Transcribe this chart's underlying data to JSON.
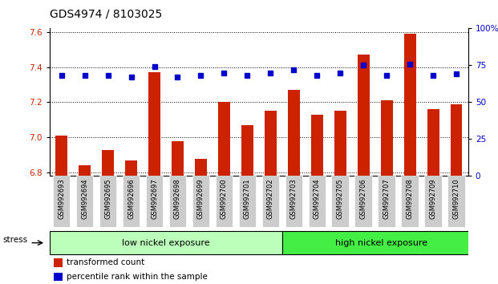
{
  "title": "GDS4974 / 8103025",
  "categories": [
    "GSM992693",
    "GSM992694",
    "GSM992695",
    "GSM992696",
    "GSM992697",
    "GSM992698",
    "GSM992699",
    "GSM992700",
    "GSM992701",
    "GSM992702",
    "GSM992703",
    "GSM992704",
    "GSM992705",
    "GSM992706",
    "GSM992707",
    "GSM992708",
    "GSM992709",
    "GSM992710"
  ],
  "bar_values": [
    7.01,
    6.84,
    6.93,
    6.87,
    7.37,
    6.98,
    6.88,
    7.2,
    7.07,
    7.15,
    7.27,
    7.13,
    7.15,
    7.47,
    7.21,
    7.59,
    7.16,
    7.19
  ],
  "dot_values": [
    68,
    68,
    68,
    67,
    74,
    67,
    68,
    70,
    68,
    70,
    72,
    68,
    70,
    75,
    68,
    76,
    68,
    69
  ],
  "ylim_left": [
    6.78,
    7.62
  ],
  "ylim_right": [
    0,
    100
  ],
  "yticks_left": [
    6.8,
    7.0,
    7.2,
    7.4,
    7.6
  ],
  "yticks_right": [
    0,
    25,
    50,
    75,
    100
  ],
  "ytick_labels_right": [
    "0",
    "25",
    "50",
    "75",
    "100%"
  ],
  "bar_color": "#cc2200",
  "dot_color": "#0000cc",
  "group1_label": "low nickel exposure",
  "group1_count": 10,
  "group2_label": "high nickel exposure",
  "group1_color": "#bbffbb",
  "group2_color": "#44ee44",
  "stress_label": "stress",
  "background_color": "#ffffff",
  "title_fontsize": 10,
  "axis_label_color_left": "#cc2200",
  "axis_label_color_right": "#0000cc",
  "legend_bar_label": "transformed count",
  "legend_dot_label": "percentile rank within the sample",
  "xtick_bg_color": "#cccccc"
}
